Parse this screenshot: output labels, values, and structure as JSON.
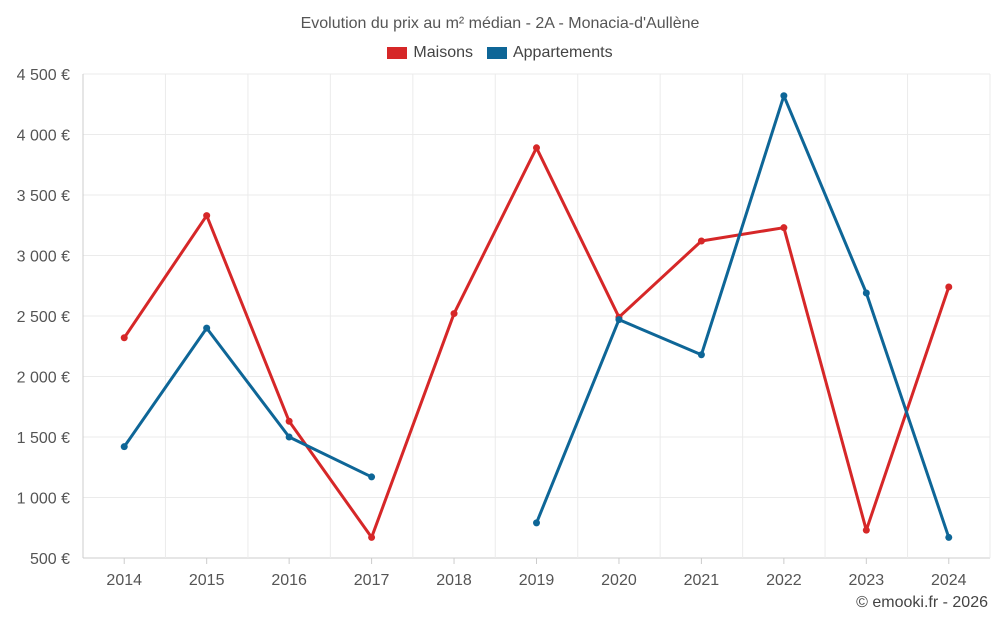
{
  "chart_data": {
    "type": "line",
    "title": "Evolution du prix au m² médian - 2A - Monacia-d'Aullène",
    "categories": [
      "2014",
      "2015",
      "2016",
      "2017",
      "2018",
      "2019",
      "2020",
      "2021",
      "2022",
      "2023",
      "2024"
    ],
    "yticks": [
      "500 €",
      "1 000 €",
      "1 500 €",
      "2 000 €",
      "2 500 €",
      "3 000 €",
      "3 500 €",
      "4 000 €",
      "4 500 €"
    ],
    "ylim": [
      500,
      4500
    ],
    "grid": true,
    "legend_position": "top",
    "series": [
      {
        "name": "Maisons",
        "color": "#d62728",
        "values": [
          2320,
          3330,
          1630,
          670,
          2520,
          3890,
          2490,
          3120,
          3230,
          730,
          2740
        ]
      },
      {
        "name": "Appartements",
        "color": "#0e6697",
        "values": [
          1420,
          2400,
          1500,
          1170,
          null,
          790,
          2470,
          2180,
          4320,
          2690,
          670
        ]
      }
    ]
  },
  "credit": "© emooki.fr - 2026"
}
